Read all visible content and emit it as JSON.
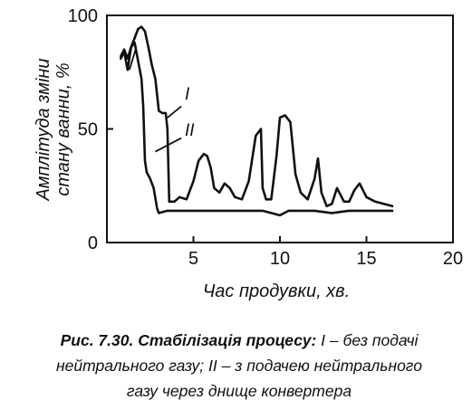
{
  "chart_data": {
    "type": "line",
    "xlabel": "Час продувки, хв.",
    "ylabel_lines": [
      "Амплітуда зміни",
      "стану ванни, %"
    ],
    "xlim": [
      0,
      20
    ],
    "ylim": [
      0,
      100
    ],
    "x_ticks": [
      5,
      10,
      15,
      20
    ],
    "y_ticks": [
      0,
      50,
      100
    ],
    "x_tick_labels": [
      "5",
      "10",
      "15",
      "20"
    ],
    "y_tick_labels": [
      "0",
      "50",
      "100"
    ],
    "grid": false,
    "legend": "inline labels near curves",
    "series": [
      {
        "name": "I",
        "x": [
          0.8,
          1.0,
          1.2,
          1.4,
          1.6,
          1.8,
          2.0,
          2.2,
          2.4,
          2.6,
          2.8,
          3.0,
          3.2,
          3.4,
          3.5,
          3.6,
          3.7,
          3.9,
          4.2,
          4.6,
          5.0,
          5.3,
          5.6,
          5.8,
          6.0,
          6.2,
          6.5,
          6.8,
          7.1,
          7.4,
          7.8,
          8.2,
          8.6,
          8.9,
          9.0,
          9.2,
          9.5,
          9.8,
          10.0,
          10.3,
          10.6,
          10.9,
          11.2,
          11.6,
          12.0,
          12.2,
          12.4,
          12.7,
          13.0,
          13.3,
          13.7,
          14.0,
          14.3,
          14.6,
          15.0,
          15.5,
          16.0,
          16.5
        ],
        "y": [
          82,
          85,
          81,
          86,
          90,
          94,
          95,
          93,
          86,
          78,
          72,
          58,
          57,
          57,
          50,
          18,
          18,
          18,
          20,
          19,
          27,
          36,
          39,
          38,
          33,
          24,
          22,
          26,
          24,
          20,
          19,
          27,
          47,
          50,
          24,
          19,
          19,
          38,
          55,
          56,
          53,
          30,
          22,
          19,
          28,
          37,
          22,
          16,
          17,
          24,
          18,
          18,
          23,
          26,
          20,
          18,
          17,
          16
        ]
      },
      {
        "name": "II",
        "x": [
          0.8,
          1.0,
          1.2,
          1.4,
          1.6,
          1.8,
          2.0,
          2.1,
          2.2,
          2.3,
          2.5,
          2.7,
          2.9,
          3.0,
          3.5,
          4.0,
          5.0,
          6.0,
          7.0,
          8.0,
          9.0,
          9.5,
          10.0,
          10.5,
          11.0,
          12.0,
          13.0,
          14.0,
          15.0,
          16.0,
          16.5
        ],
        "y": [
          81,
          84,
          76,
          86,
          88,
          80,
          72,
          60,
          36,
          31,
          28,
          24,
          15,
          13,
          14,
          14,
          14,
          14,
          14,
          14,
          14,
          13,
          12,
          14,
          14,
          14,
          13,
          14,
          14,
          14,
          14
        ]
      }
    ]
  },
  "caption": {
    "bold_part": "Рис. 7.30. Стабілізація процесу:",
    "line1_rest": " I – без подачі",
    "line2": "нейтрального газу; II – з подачею нейтрального",
    "line3": "газу через днище конвертера"
  }
}
